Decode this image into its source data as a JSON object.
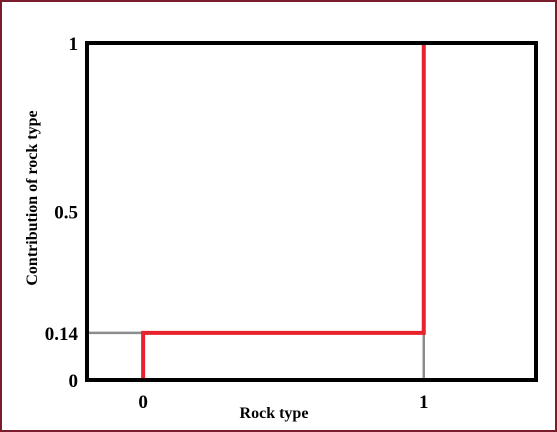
{
  "chart_data": {
    "type": "line",
    "title": "",
    "xlabel": "Rock type",
    "ylabel": "Contribution of rock type",
    "xlim": [
      -0.2,
      1.4
    ],
    "ylim": [
      0,
      1
    ],
    "grid": false,
    "x_ticks": [
      {
        "value": 0,
        "label": "0"
      },
      {
        "value": 1,
        "label": "1"
      }
    ],
    "y_ticks": [
      {
        "value": 0,
        "label": "0"
      },
      {
        "value": 0.14,
        "label": "0.14"
      },
      {
        "value": 0.5,
        "label": "0.5"
      },
      {
        "value": 1,
        "label": "1"
      }
    ],
    "series": [
      {
        "x": [
          0,
          0,
          1,
          1
        ],
        "y": [
          0,
          0.14,
          0.14,
          1
        ]
      }
    ],
    "guide_lines": [
      {
        "x": [
          -0.2,
          0
        ],
        "y": [
          0.14,
          0.14
        ]
      },
      {
        "x": [
          1,
          1
        ],
        "y": [
          0,
          0.14
        ]
      }
    ],
    "colors": {
      "series": "#e8222b",
      "guide": "#8c8c8c",
      "axes": "#000000",
      "frame": "#7a1c2e"
    }
  }
}
